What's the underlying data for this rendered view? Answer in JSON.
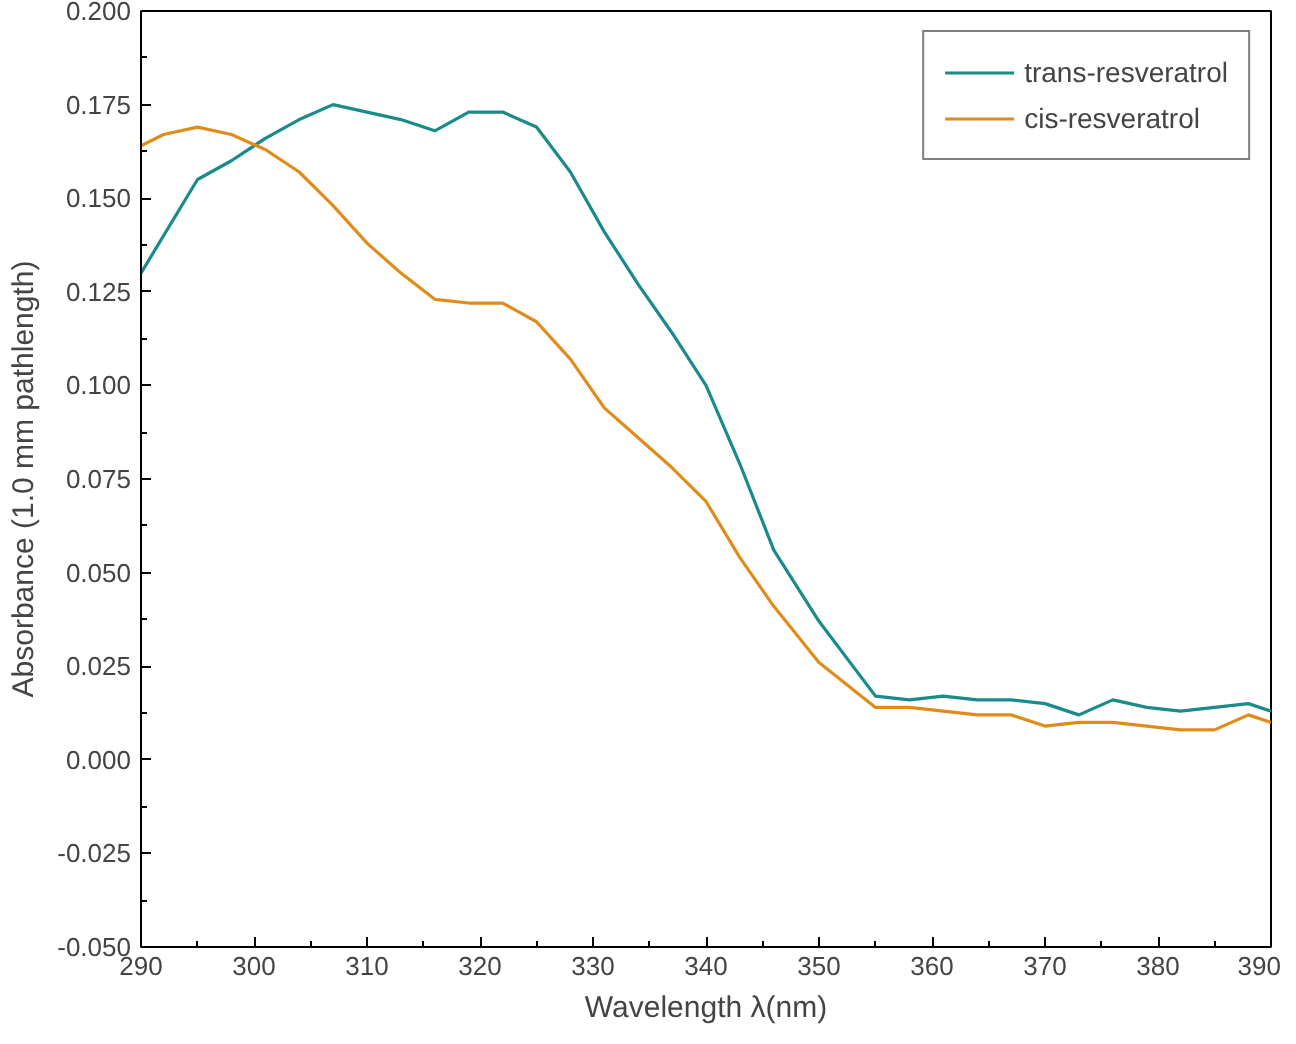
{
  "chart_data": {
    "type": "line",
    "xlabel": "Wavelength λ(nm)",
    "ylabel": "Absorbance (1.0 mm pathlength)",
    "xlim": [
      290,
      390
    ],
    "ylim": [
      -0.05,
      0.2
    ],
    "xticks": [
      290,
      300,
      310,
      320,
      330,
      340,
      350,
      360,
      370,
      380,
      390
    ],
    "yticks": [
      {
        "value": -0.05,
        "label": "-0.050"
      },
      {
        "value": -0.025,
        "label": "-0.025"
      },
      {
        "value": 0,
        "label": "0.000"
      },
      {
        "value": 0.025,
        "label": "0.025"
      },
      {
        "value": 0.05,
        "label": "0.050"
      },
      {
        "value": 0.075,
        "label": "0.075"
      },
      {
        "value": 0.1,
        "label": "0.100"
      },
      {
        "value": 0.125,
        "label": "0.125"
      },
      {
        "value": 0.15,
        "label": "0.150"
      },
      {
        "value": 0.175,
        "label": "0.175"
      },
      {
        "value": 0.2,
        "label": "0.200"
      }
    ],
    "grid": false,
    "legend": "top right",
    "line_style": "solid",
    "marker": "none",
    "series": [
      {
        "name": "trans-resveratrol",
        "color": "#1a8a8a",
        "x": [
          290,
          295,
          298,
          301,
          304,
          307,
          310,
          313,
          316,
          319,
          322,
          325,
          328,
          331,
          334,
          337,
          340,
          343,
          346,
          350,
          355,
          358,
          361,
          364,
          367,
          370,
          373,
          376,
          379,
          382,
          385,
          388,
          390
        ],
        "values": [
          0.13,
          0.155,
          0.16,
          0.166,
          0.171,
          0.175,
          0.173,
          0.171,
          0.168,
          0.173,
          0.173,
          0.169,
          0.157,
          0.141,
          0.127,
          0.114,
          0.1,
          0.079,
          0.056,
          0.037,
          0.017,
          0.016,
          0.017,
          0.016,
          0.016,
          0.015,
          0.012,
          0.016,
          0.014,
          0.013,
          0.014,
          0.015,
          0.013
        ]
      },
      {
        "name": "cis-resveratrol",
        "color": "#e08c1a",
        "x": [
          290,
          292,
          295,
          298,
          301,
          304,
          307,
          310,
          313,
          316,
          319,
          322,
          325,
          328,
          331,
          334,
          337,
          340,
          343,
          346,
          350,
          355,
          358,
          361,
          364,
          367,
          370,
          373,
          376,
          379,
          382,
          385,
          388,
          390
        ],
        "values": [
          0.164,
          0.167,
          0.169,
          0.167,
          0.163,
          0.157,
          0.148,
          0.138,
          0.13,
          0.123,
          0.122,
          0.122,
          0.117,
          0.107,
          0.094,
          0.086,
          0.078,
          0.069,
          0.054,
          0.041,
          0.026,
          0.014,
          0.014,
          0.013,
          0.012,
          0.012,
          0.009,
          0.01,
          0.01,
          0.009,
          0.008,
          0.008,
          0.012,
          0.01
        ]
      }
    ]
  }
}
